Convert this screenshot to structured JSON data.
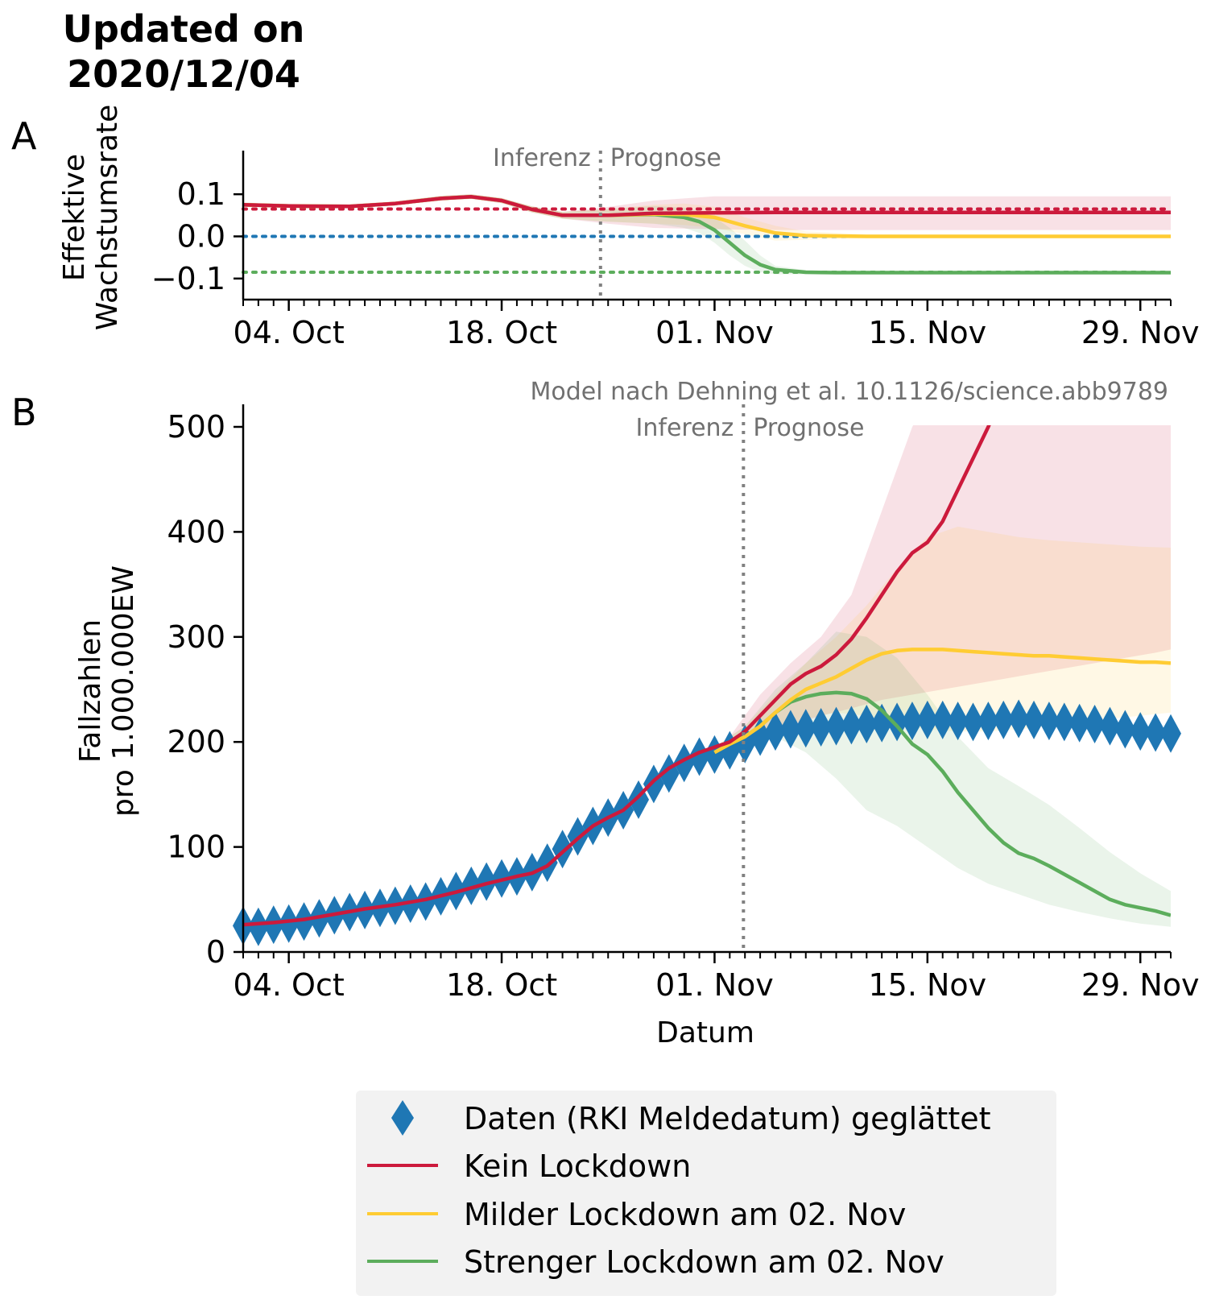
{
  "header": {
    "updated_line1": "Updated on",
    "updated_line2": "2020/12/04"
  },
  "panels": {
    "a_letter": "A",
    "b_letter": "B"
  },
  "annotations": {
    "inferenz": "Inferenz",
    "prognose": "Prognose",
    "model_credit": "Model nach Dehning et al. 10.1126/science.abb9789"
  },
  "colors": {
    "data": "#1f77b4",
    "kein": "#cc1a3c",
    "milder": "#ffcc33",
    "strenger": "#5cad5c",
    "divider": "#808080",
    "legend_bg": "#f2f2f2"
  },
  "legend": {
    "items": [
      {
        "label": "Daten (RKI Meldedatum) geglättet",
        "icon": "diamond-marker-icon",
        "color": "#1f77b4"
      },
      {
        "label": "Kein Lockdown",
        "icon": "line-icon",
        "color": "#cc1a3c"
      },
      {
        "label": "Milder Lockdown am 02. Nov",
        "icon": "line-icon",
        "color": "#ffcc33"
      },
      {
        "label": "Strenger Lockdown am 02. Nov",
        "icon": "line-icon",
        "color": "#5cad5c"
      }
    ]
  },
  "chart_data": [
    {
      "type": "line",
      "panel": "A",
      "ylabel": [
        "Effektive",
        "Wachstumsrate"
      ],
      "xlabel": "",
      "x_ticks": [
        "04. Oct",
        "18. Oct",
        "01. Nov",
        "15. Nov",
        "29. Nov"
      ],
      "x_tick_days": [
        4,
        18,
        32,
        46,
        60
      ],
      "xlim_days": [
        1,
        62
      ],
      "ylim": [
        -0.15,
        0.15
      ],
      "y_ticks": [
        0.1,
        0.0,
        -0.1
      ],
      "y_tick_labels": [
        "0.1",
        "0.0",
        "−0.1"
      ],
      "divider_day": 24.5,
      "reference_lines": [
        {
          "series": "Kein Lockdown",
          "value": 0.065,
          "color": "#cc1a3c"
        },
        {
          "series": "Milder Lockdown am 02. Nov",
          "value": 0.0,
          "color": "#1f77b4"
        },
        {
          "series": "Strenger Lockdown am 02. Nov",
          "value": -0.085,
          "color": "#5cad5c"
        }
      ],
      "series": [
        {
          "name": "Kein Lockdown",
          "color": "#cc1a3c",
          "x": [
            1,
            4,
            8,
            11,
            14,
            16,
            18,
            20,
            22,
            25,
            28,
            32,
            36,
            40,
            50,
            62
          ],
          "y": [
            0.075,
            0.072,
            0.071,
            0.078,
            0.09,
            0.094,
            0.085,
            0.064,
            0.05,
            0.05,
            0.055,
            0.056,
            0.057,
            0.057,
            0.057,
            0.057
          ],
          "band": {
            "lower": [
              0.07,
              0.068,
              0.067,
              0.074,
              0.085,
              0.089,
              0.079,
              0.057,
              0.042,
              0.03,
              0.02,
              0.017,
              0.015,
              0.015,
              0.015,
              0.015
            ],
            "upper": [
              0.08,
              0.077,
              0.076,
              0.083,
              0.096,
              0.1,
              0.091,
              0.071,
              0.058,
              0.07,
              0.085,
              0.095,
              0.095,
              0.095,
              0.095,
              0.095
            ]
          }
        },
        {
          "name": "Milder Lockdown am 02. Nov",
          "color": "#ffcc33",
          "x": [
            1,
            4,
            8,
            11,
            14,
            16,
            18,
            20,
            22,
            25,
            28,
            30,
            32,
            34,
            36,
            38,
            42,
            62
          ],
          "y": [
            0.075,
            0.072,
            0.071,
            0.078,
            0.09,
            0.094,
            0.085,
            0.064,
            0.05,
            0.05,
            0.053,
            0.052,
            0.045,
            0.025,
            0.008,
            0.002,
            0.0,
            0.0
          ],
          "band": {
            "lower": [
              0.07,
              0.068,
              0.067,
              0.074,
              0.085,
              0.089,
              0.079,
              0.057,
              0.042,
              0.035,
              0.03,
              0.027,
              0.02,
              0.005,
              -0.01,
              -0.008,
              -0.004,
              -0.003
            ],
            "upper": [
              0.08,
              0.077,
              0.076,
              0.083,
              0.096,
              0.1,
              0.091,
              0.071,
              0.058,
              0.065,
              0.075,
              0.078,
              0.07,
              0.045,
              0.025,
              0.012,
              0.005,
              0.004
            ]
          }
        },
        {
          "name": "Strenger Lockdown am 02. Nov",
          "color": "#5cad5c",
          "x": [
            1,
            4,
            8,
            11,
            14,
            16,
            18,
            20,
            22,
            25,
            28,
            30,
            31,
            32,
            33,
            34,
            35,
            36,
            38,
            40,
            45,
            62
          ],
          "y": [
            0.075,
            0.072,
            0.071,
            0.078,
            0.09,
            0.094,
            0.085,
            0.064,
            0.05,
            0.05,
            0.052,
            0.045,
            0.035,
            0.015,
            -0.015,
            -0.045,
            -0.067,
            -0.079,
            -0.085,
            -0.086,
            -0.086,
            -0.086
          ],
          "band": {
            "lower": [
              0.07,
              0.068,
              0.067,
              0.074,
              0.085,
              0.089,
              0.079,
              0.057,
              0.042,
              0.035,
              0.03,
              0.02,
              0.008,
              -0.015,
              -0.045,
              -0.07,
              -0.085,
              -0.09,
              -0.09,
              -0.09,
              -0.089,
              -0.089
            ],
            "upper": [
              0.08,
              0.077,
              0.076,
              0.083,
              0.096,
              0.1,
              0.091,
              0.071,
              0.058,
              0.065,
              0.072,
              0.068,
              0.06,
              0.045,
              0.02,
              -0.01,
              -0.045,
              -0.07,
              -0.08,
              -0.083,
              -0.083,
              -0.083
            ]
          }
        }
      ]
    },
    {
      "type": "line",
      "panel": "B",
      "ylabel": [
        "Fallzahlen",
        "pro 1.000.000EW"
      ],
      "xlabel": "Datum",
      "x_ticks": [
        "04. Oct",
        "18. Oct",
        "01. Nov",
        "15. Nov",
        "29. Nov"
      ],
      "x_tick_days": [
        4,
        18,
        32,
        46,
        60
      ],
      "xlim_days": [
        1,
        62
      ],
      "ylim": [
        0,
        500
      ],
      "y_ticks": [
        0,
        100,
        200,
        300,
        400,
        500
      ],
      "y_tick_labels": [
        "0",
        "100",
        "200",
        "300",
        "400",
        "500"
      ],
      "divider_day": 33.9,
      "data_points": {
        "name": "Daten (RKI Meldedatum) geglättet",
        "color": "#1f77b4",
        "x": [
          1,
          2,
          3,
          4,
          5,
          6,
          7,
          8,
          9,
          10,
          11,
          12,
          13,
          14,
          15,
          16,
          17,
          18,
          19,
          20,
          21,
          22,
          23,
          24,
          25,
          26,
          27,
          28,
          29,
          30,
          31,
          32,
          33,
          34,
          35,
          36,
          37,
          38,
          39,
          40,
          41,
          42,
          43,
          44,
          45,
          46,
          47,
          48,
          49,
          50,
          51,
          52,
          53,
          54,
          55,
          56,
          57,
          58,
          59,
          60,
          61,
          62
        ],
        "y": [
          25,
          24,
          26,
          27,
          29,
          32,
          35,
          38,
          40,
          42,
          44,
          46,
          48,
          53,
          58,
          63,
          67,
          70,
          72,
          76,
          85,
          98,
          110,
          120,
          128,
          135,
          145,
          160,
          170,
          180,
          186,
          188,
          192,
          198,
          205,
          210,
          212,
          213,
          214,
          215,
          216,
          217,
          218,
          219,
          220,
          221,
          221,
          220,
          219,
          220,
          221,
          222,
          221,
          220,
          219,
          218,
          217,
          215,
          212,
          210,
          209,
          208
        ]
      },
      "series": [
        {
          "name": "Kein Lockdown",
          "color": "#cc1a3c",
          "x": [
            1,
            3,
            5,
            7,
            9,
            11,
            13,
            15,
            17,
            19,
            20,
            21,
            22,
            23,
            24,
            25,
            26,
            27,
            28,
            29,
            30,
            31,
            32,
            33,
            34,
            35,
            36,
            37,
            38,
            39,
            40,
            41,
            42,
            43,
            44,
            45,
            46,
            47,
            48,
            49,
            50,
            51,
            52
          ],
          "y": [
            26,
            28,
            31,
            36,
            41,
            45,
            50,
            57,
            65,
            72,
            75,
            82,
            95,
            108,
            120,
            128,
            135,
            148,
            163,
            175,
            183,
            190,
            195,
            200,
            210,
            225,
            240,
            255,
            265,
            272,
            283,
            298,
            318,
            340,
            362,
            380,
            390,
            410,
            440,
            470,
            500,
            535,
            570
          ],
          "band": {
            "x": [
              33,
              35,
              37,
              39,
              41,
              43,
              45,
              47,
              49,
              51,
              53,
              55,
              57,
              59,
              61,
              62
            ],
            "lower": [
              195,
              205,
              215,
              225,
              232,
              240,
              245,
              250,
              255,
              260,
              265,
              270,
              275,
              280,
              285,
              288
            ],
            "upper": [
              205,
              245,
              275,
              300,
              340,
              420,
              500,
              550,
              580,
              600,
              600,
              600,
              600,
              600,
              600,
              600
            ]
          }
        },
        {
          "name": "Milder Lockdown am 02. Nov",
          "color": "#ffcc33",
          "x": [
            32,
            33,
            34,
            35,
            36,
            37,
            38,
            39,
            40,
            41,
            42,
            43,
            44,
            45,
            46,
            47,
            48,
            49,
            50,
            51,
            52,
            53,
            54,
            55,
            56,
            57,
            58,
            59,
            60,
            61,
            62
          ],
          "y": [
            190,
            198,
            205,
            215,
            228,
            240,
            250,
            256,
            262,
            270,
            278,
            284,
            287,
            288,
            288,
            288,
            287,
            286,
            285,
            284,
            283,
            282,
            282,
            281,
            280,
            279,
            278,
            277,
            276,
            276,
            275
          ],
          "band": {
            "x": [
              32,
              34,
              36,
              38,
              40,
              42,
              44,
              46,
              48,
              50,
              52,
              54,
              56,
              58,
              60,
              62
            ],
            "lower": [
              188,
              200,
              212,
              222,
              228,
              225,
              218,
              212,
              210,
              210,
              212,
              215,
              218,
              222,
              225,
              228
            ],
            "upper": [
              195,
              215,
              245,
              275,
              300,
              330,
              365,
              395,
              405,
              400,
              395,
              392,
              390,
              388,
              386,
              385
            ]
          }
        },
        {
          "name": "Strenger Lockdown am 02. Nov",
          "color": "#5cad5c",
          "x": [
            32,
            33,
            34,
            35,
            36,
            37,
            38,
            39,
            40,
            41,
            42,
            43,
            44,
            45,
            46,
            47,
            48,
            49,
            50,
            51,
            52,
            53,
            54,
            55,
            56,
            57,
            58,
            59,
            60,
            61,
            62
          ],
          "y": [
            190,
            198,
            205,
            215,
            228,
            238,
            243,
            246,
            247,
            246,
            241,
            230,
            215,
            198,
            188,
            172,
            152,
            135,
            118,
            104,
            94,
            89,
            82,
            74,
            66,
            58,
            50,
            45,
            42,
            39,
            35
          ],
          "band": {
            "x": [
              32,
              34,
              36,
              38,
              40,
              42,
              44,
              46,
              48,
              50,
              52,
              54,
              56,
              58,
              60,
              62
            ],
            "lower": [
              188,
              200,
              205,
              190,
              165,
              135,
              120,
              100,
              80,
              65,
              55,
              45,
              38,
              32,
              27,
              24
            ],
            "upper": [
              195,
              215,
              250,
              275,
              305,
              300,
              280,
              245,
              205,
              175,
              158,
              140,
              118,
              95,
              75,
              58
            ]
          }
        }
      ]
    }
  ]
}
